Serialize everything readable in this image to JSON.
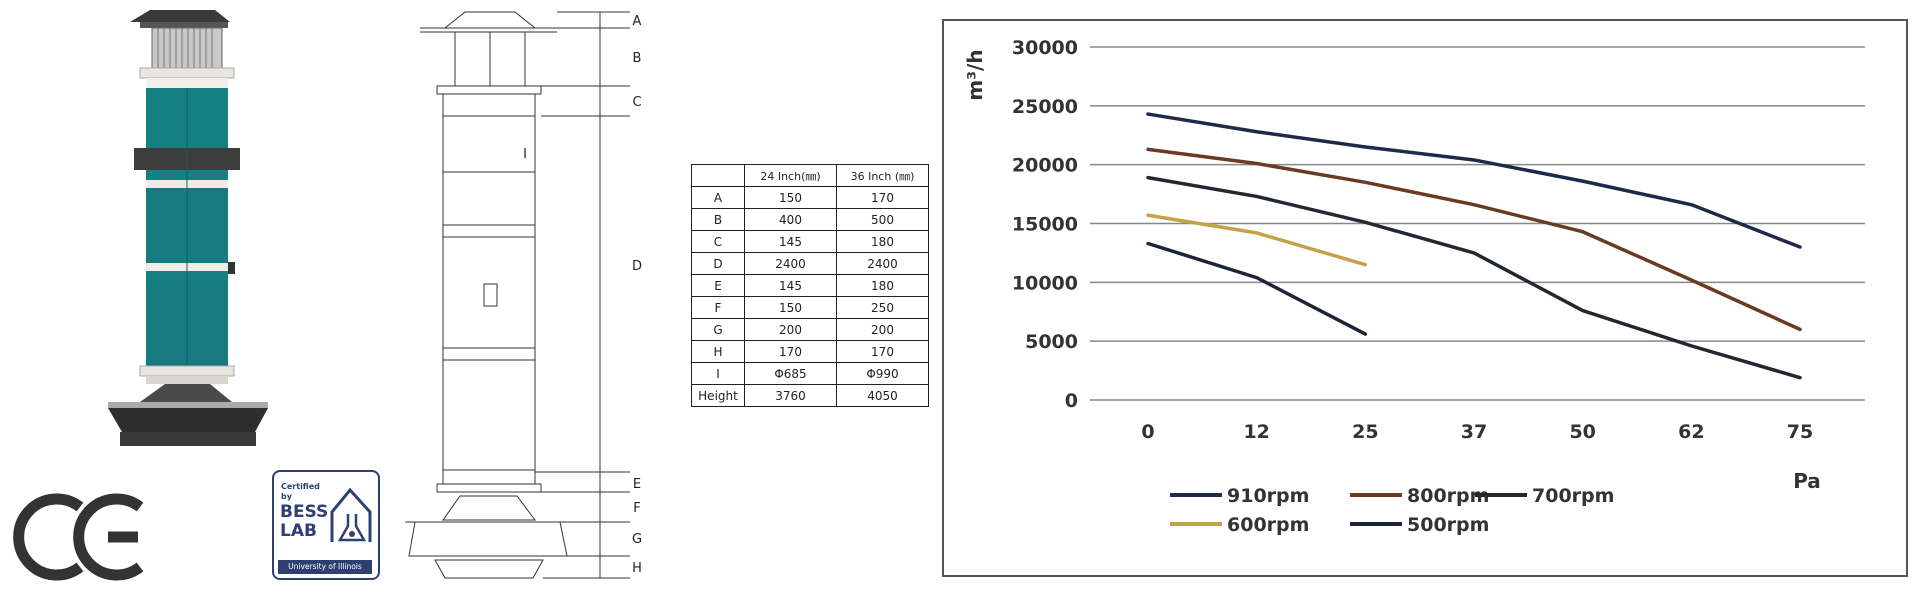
{
  "drawing": {
    "labels": [
      "A",
      "B",
      "C",
      "D",
      "E",
      "F",
      "G",
      "H"
    ],
    "section_label": "I"
  },
  "dimension_table": {
    "headers": [
      "",
      "24 Inch(㎜)",
      "36 Inch (㎜)"
    ],
    "rows": [
      [
        "A",
        "150",
        "170"
      ],
      [
        "B",
        "400",
        "500"
      ],
      [
        "C",
        "145",
        "180"
      ],
      [
        "D",
        "2400",
        "2400"
      ],
      [
        "E",
        "145",
        "180"
      ],
      [
        "F",
        "150",
        "250"
      ],
      [
        "G",
        "200",
        "200"
      ],
      [
        "H",
        "170",
        "170"
      ],
      [
        "I",
        "Φ685",
        "Φ990"
      ],
      [
        "Height",
        "3760",
        "4050"
      ]
    ]
  },
  "certification": {
    "ce_mark": "CE",
    "badge_top": "Certified",
    "badge_by": "by",
    "badge_line1": "BESS",
    "badge_line2": "LAB",
    "badge_footer": "University of Illinois"
  },
  "chart_data": {
    "type": "line",
    "ylabel": "m³/h",
    "xlabel": "Pa",
    "categories": [
      "0",
      "12",
      "25",
      "37",
      "50",
      "62",
      "75"
    ],
    "y_ticks": [
      "0",
      "5000",
      "10000",
      "15000",
      "20000",
      "25000",
      "30000"
    ],
    "ylim": [
      0,
      30000
    ],
    "grid": true,
    "legend_position": "bottom",
    "series": [
      {
        "name": "910rpm",
        "color": "#1f2a4a",
        "values": [
          24300,
          22800,
          21500,
          20400,
          18600,
          16600,
          13000
        ]
      },
      {
        "name": "800rpm",
        "color": "#6a3a22",
        "values": [
          21300,
          20100,
          18500,
          16600,
          14300,
          10200,
          6000
        ]
      },
      {
        "name": "700rpm",
        "color": "#222831",
        "values": [
          18900,
          17300,
          15100,
          12500,
          7600,
          4600,
          1900
        ]
      },
      {
        "name": "600rpm",
        "color": "#c4a24a",
        "values": [
          15700,
          14200,
          11500,
          null,
          null,
          null,
          null
        ]
      },
      {
        "name": "500rpm",
        "color": "#1b2438",
        "values": [
          13300,
          10400,
          5600,
          null,
          null,
          null,
          null
        ]
      }
    ]
  }
}
